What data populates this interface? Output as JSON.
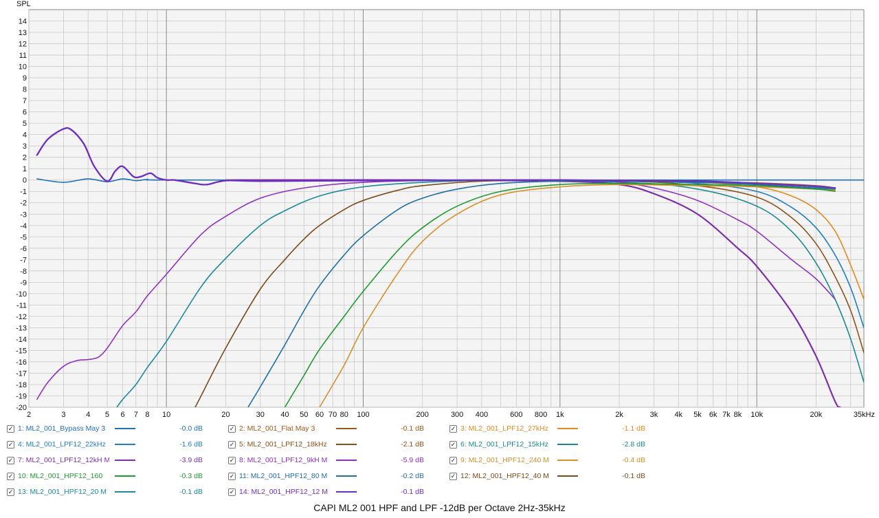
{
  "caption": "CAPI ML2 001 HPF and LPF -12dB per Octave 2Hz-35kHz",
  "chart_data": {
    "type": "line",
    "title": "CAPI ML2 001 HPF and LPF -12dB per Octave 2Hz-35kHz",
    "ylabel": "SPL",
    "xscale": "log",
    "xlim": [
      2,
      35000
    ],
    "ylim": [
      -20,
      15
    ],
    "grid": true,
    "legend_placement": "bottom",
    "x_ticks": [
      {
        "v": 2,
        "label": "2"
      },
      {
        "v": 3,
        "label": "3"
      },
      {
        "v": 4,
        "label": "4"
      },
      {
        "v": 5,
        "label": "5"
      },
      {
        "v": 6,
        "label": "6"
      },
      {
        "v": 7,
        "label": "7"
      },
      {
        "v": 8,
        "label": "8"
      },
      {
        "v": 10,
        "label": "10"
      },
      {
        "v": 20,
        "label": "20"
      },
      {
        "v": 30,
        "label": "30"
      },
      {
        "v": 40,
        "label": "40"
      },
      {
        "v": 50,
        "label": "50"
      },
      {
        "v": 60,
        "label": "60"
      },
      {
        "v": 70,
        "label": "70"
      },
      {
        "v": 80,
        "label": "80"
      },
      {
        "v": 100,
        "label": "100"
      },
      {
        "v": 200,
        "label": "200"
      },
      {
        "v": 300,
        "label": "300"
      },
      {
        "v": 400,
        "label": "400"
      },
      {
        "v": 600,
        "label": "600"
      },
      {
        "v": 800,
        "label": "800"
      },
      {
        "v": 1000,
        "label": "1k"
      },
      {
        "v": 2000,
        "label": "2k"
      },
      {
        "v": 3000,
        "label": "3k"
      },
      {
        "v": 4000,
        "label": "4k"
      },
      {
        "v": 5000,
        "label": "5k"
      },
      {
        "v": 6000,
        "label": "6k"
      },
      {
        "v": 7000,
        "label": "7k"
      },
      {
        "v": 8000,
        "label": "8k"
      },
      {
        "v": 10000,
        "label": "10k"
      },
      {
        "v": 20000,
        "label": "20k"
      },
      {
        "v": 35000,
        "label": "35kHz"
      }
    ],
    "y_ticks": [
      14,
      13,
      12,
      11,
      10,
      9,
      8,
      7,
      6,
      5,
      4,
      3,
      2,
      1,
      0,
      -1,
      -2,
      -3,
      -4,
      -5,
      -6,
      -7,
      -8,
      -9,
      -10,
      -11,
      -12,
      -13,
      -14,
      -15,
      -16,
      -17,
      -18,
      -19,
      -20
    ],
    "series": [
      {
        "name": "1: ML2_001_Bypass May 3",
        "value": "-0.0 dB",
        "color": "#1f6fb5",
        "points": [
          [
            2.2,
            0.1
          ],
          [
            3,
            -0.2
          ],
          [
            4,
            0.1
          ],
          [
            5,
            -0.15
          ],
          [
            6,
            0.1
          ],
          [
            7,
            -0.05
          ],
          [
            8,
            0.05
          ],
          [
            10,
            0
          ],
          [
            100,
            0
          ],
          [
            1000,
            0
          ],
          [
            10000,
            0
          ],
          [
            35000,
            0
          ]
        ]
      },
      {
        "name": "2: ML2_001_Flat May 3",
        "value": "-0.1 dB",
        "color": "#9a5a1a",
        "points": [
          [
            20,
            0
          ],
          [
            100,
            -0.02
          ],
          [
            1000,
            0
          ],
          [
            3000,
            -0.05
          ],
          [
            10000,
            -0.25
          ],
          [
            20000,
            -0.5
          ],
          [
            25000,
            -0.7
          ]
        ]
      },
      {
        "name": "3: ML2_001_LPF12_27kHz",
        "value": "-1.1 dB",
        "color": "#e08a1e",
        "points": [
          [
            20,
            0
          ],
          [
            200,
            0
          ],
          [
            2000,
            -0.1
          ],
          [
            5000,
            -0.2
          ],
          [
            10000,
            -0.6
          ],
          [
            15000,
            -1.4
          ],
          [
            20000,
            -2.6
          ],
          [
            25000,
            -4.5
          ],
          [
            30000,
            -7.5
          ],
          [
            35000,
            -10.5
          ]
        ]
      },
      {
        "name": "4: ML2_001_LPF12_22kHz",
        "value": "-1.6 dB",
        "color": "#1f7fbf",
        "points": [
          [
            20,
            0
          ],
          [
            200,
            0
          ],
          [
            2000,
            -0.1
          ],
          [
            5000,
            -0.3
          ],
          [
            10000,
            -1
          ],
          [
            15000,
            -2.4
          ],
          [
            20000,
            -4.2
          ],
          [
            25000,
            -6.6
          ],
          [
            30000,
            -9.5
          ],
          [
            35000,
            -13
          ]
        ]
      },
      {
        "name": "5: ML2_001_LPF12_18kHz",
        "value": "-2.1 dB",
        "color": "#8a5216",
        "points": [
          [
            20,
            0
          ],
          [
            200,
            0
          ],
          [
            2000,
            -0.1
          ],
          [
            5000,
            -0.5
          ],
          [
            10000,
            -1.5
          ],
          [
            15000,
            -3.3
          ],
          [
            20000,
            -5.6
          ],
          [
            25000,
            -8.5
          ],
          [
            30000,
            -11.5
          ],
          [
            35000,
            -15.2
          ]
        ]
      },
      {
        "name": "6: ML2_001_LPF12_15kHz",
        "value": "-2.8 dB",
        "color": "#1a8a8f",
        "points": [
          [
            20,
            0
          ],
          [
            200,
            0
          ],
          [
            2000,
            -0.2
          ],
          [
            5000,
            -0.8
          ],
          [
            10000,
            -2.3
          ],
          [
            15000,
            -4.5
          ],
          [
            20000,
            -7.3
          ],
          [
            25000,
            -10.5
          ],
          [
            30000,
            -14
          ],
          [
            35000,
            -17.8
          ]
        ]
      },
      {
        "name": "7: ML2_001_LPF12_12kH M",
        "value": "-3.9 dB",
        "color": "#7b2fa8",
        "points": [
          [
            2.2,
            2.2
          ],
          [
            2.5,
            3.6
          ],
          [
            3,
            4.5
          ],
          [
            3.3,
            4.4
          ],
          [
            3.8,
            3.2
          ],
          [
            4.3,
            1.2
          ],
          [
            5,
            -0.1
          ],
          [
            5.5,
            0.8
          ],
          [
            6,
            1.2
          ],
          [
            6.8,
            0.3
          ],
          [
            7.4,
            0.3
          ],
          [
            8.3,
            0.6
          ],
          [
            9,
            0.2
          ],
          [
            10,
            0
          ],
          [
            11,
            0
          ],
          [
            14,
            -0.3
          ],
          [
            16,
            -0.4
          ],
          [
            20,
            -0.05
          ],
          [
            30,
            0
          ],
          [
            200,
            0
          ],
          [
            1000,
            -0.1
          ],
          [
            2000,
            -0.4
          ],
          [
            3000,
            -1.2
          ],
          [
            5000,
            -3
          ],
          [
            8000,
            -6
          ],
          [
            10000,
            -7.6
          ],
          [
            15000,
            -11.6
          ],
          [
            20000,
            -15.5
          ],
          [
            25000,
            -19.5
          ],
          [
            26500,
            -20
          ]
        ]
      },
      {
        "name": "8: ML2_001_LPF12_9kH M",
        "value": "-5.9 dB",
        "color": "#8e30bf",
        "points": [
          [
            2.2,
            -19.3
          ],
          [
            2.5,
            -17.8
          ],
          [
            3,
            -16.4
          ],
          [
            3.5,
            -15.9
          ],
          [
            4,
            -15.8
          ],
          [
            4.5,
            -15.6
          ],
          [
            5,
            -14.8
          ],
          [
            6,
            -12.8
          ],
          [
            7,
            -11.6
          ],
          [
            8,
            -10.2
          ],
          [
            10,
            -8.3
          ],
          [
            15,
            -4.8
          ],
          [
            20,
            -3.2
          ],
          [
            30,
            -1.6
          ],
          [
            50,
            -0.7
          ],
          [
            100,
            -0.2
          ],
          [
            300,
            0
          ],
          [
            1000,
            0
          ],
          [
            1800,
            -0.1
          ],
          [
            3000,
            -0.7
          ],
          [
            5000,
            -1.8
          ],
          [
            8000,
            -3.5
          ],
          [
            10000,
            -4.5
          ],
          [
            15000,
            -7
          ],
          [
            20000,
            -8.7
          ],
          [
            25000,
            -10.5
          ]
        ]
      },
      {
        "name": "9: ML2_001_HPF12_240 M",
        "value": "-0.4 dB",
        "color": "#d6902a",
        "points": [
          [
            60,
            -20
          ],
          [
            80,
            -16.3
          ],
          [
            100,
            -13
          ],
          [
            150,
            -8.2
          ],
          [
            200,
            -5.4
          ],
          [
            300,
            -3
          ],
          [
            500,
            -1.3
          ],
          [
            1000,
            -0.6
          ],
          [
            2000,
            -0.4
          ],
          [
            5000,
            -0.5
          ],
          [
            10000,
            -0.6
          ],
          [
            20000,
            -0.8
          ],
          [
            25000,
            -0.9
          ]
        ]
      },
      {
        "name": "10: ML2_001_HPF12_160",
        "value": "-0.3 dB",
        "color": "#1f9a30",
        "points": [
          [
            40,
            -20
          ],
          [
            50,
            -17.2
          ],
          [
            60,
            -14.9
          ],
          [
            80,
            -12
          ],
          [
            100,
            -9.8
          ],
          [
            150,
            -6.2
          ],
          [
            200,
            -4.2
          ],
          [
            300,
            -2.3
          ],
          [
            500,
            -1
          ],
          [
            1000,
            -0.4
          ],
          [
            2000,
            -0.3
          ],
          [
            5000,
            -0.4
          ],
          [
            10000,
            -0.5
          ],
          [
            20000,
            -0.8
          ],
          [
            25000,
            -1
          ]
        ]
      },
      {
        "name": "11: ML2_001_HPF12_80 M",
        "value": "-0.2 dB",
        "color": "#1f6fa5",
        "points": [
          [
            26,
            -20
          ],
          [
            30,
            -18.2
          ],
          [
            40,
            -14.5
          ],
          [
            50,
            -11.5
          ],
          [
            60,
            -9.3
          ],
          [
            80,
            -6.6
          ],
          [
            100,
            -4.9
          ],
          [
            150,
            -2.6
          ],
          [
            200,
            -1.6
          ],
          [
            300,
            -0.8
          ],
          [
            500,
            -0.3
          ],
          [
            1000,
            -0.1
          ],
          [
            2000,
            -0.1
          ],
          [
            5000,
            -0.2
          ],
          [
            10000,
            -0.4
          ],
          [
            20000,
            -0.7
          ],
          [
            25000,
            -0.8
          ]
        ]
      },
      {
        "name": "12: ML2_001_HPF12_40 M",
        "value": "-0.1 dB",
        "color": "#7a4a18",
        "points": [
          [
            14,
            -20
          ],
          [
            15,
            -19
          ],
          [
            20,
            -14.8
          ],
          [
            30,
            -9.6
          ],
          [
            40,
            -7
          ],
          [
            50,
            -5.2
          ],
          [
            60,
            -4
          ],
          [
            80,
            -2.6
          ],
          [
            100,
            -1.8
          ],
          [
            150,
            -0.9
          ],
          [
            200,
            -0.5
          ],
          [
            400,
            -0.1
          ],
          [
            1000,
            0
          ],
          [
            5000,
            -0.1
          ],
          [
            10000,
            -0.3
          ],
          [
            20000,
            -0.6
          ],
          [
            25000,
            -0.8
          ]
        ]
      },
      {
        "name": "13: ML2_001_HPF12_20 M",
        "value": "-0.1 dB",
        "color": "#1a8a9a",
        "points": [
          [
            5.6,
            -20
          ],
          [
            6,
            -19.3
          ],
          [
            7,
            -18
          ],
          [
            8,
            -16.5
          ],
          [
            10,
            -14.2
          ],
          [
            15,
            -9.4
          ],
          [
            20,
            -6.9
          ],
          [
            30,
            -4
          ],
          [
            40,
            -2.7
          ],
          [
            60,
            -1.4
          ],
          [
            100,
            -0.6
          ],
          [
            200,
            -0.2
          ],
          [
            500,
            0
          ],
          [
            1000,
            0
          ],
          [
            5000,
            -0.1
          ],
          [
            10000,
            -0.3
          ],
          [
            20000,
            -0.6
          ],
          [
            25000,
            -0.8
          ]
        ]
      },
      {
        "name": "14: ML2_001_HPF12_12 M",
        "value": "-0.1 dB",
        "color": "#6d2fc0",
        "points": [
          [
            2.2,
            2.2
          ],
          [
            2.5,
            3.6
          ],
          [
            3,
            4.5
          ],
          [
            3.3,
            4.4
          ],
          [
            3.8,
            3.2
          ],
          [
            4.3,
            1.2
          ],
          [
            5,
            -0.1
          ],
          [
            5.5,
            0.8
          ],
          [
            6,
            1.2
          ],
          [
            6.8,
            0.3
          ],
          [
            7.4,
            0.3
          ],
          [
            8.3,
            0.6
          ],
          [
            9,
            0.2
          ],
          [
            10,
            0
          ],
          [
            11,
            0
          ],
          [
            14,
            -0.3
          ],
          [
            16,
            -0.4
          ],
          [
            20,
            -0.05
          ],
          [
            30,
            -0.1
          ],
          [
            100,
            -0.05
          ],
          [
            1000,
            0
          ],
          [
            5000,
            -0.1
          ],
          [
            10000,
            -0.3
          ],
          [
            20000,
            -0.55
          ],
          [
            25000,
            -0.7
          ]
        ]
      }
    ]
  }
}
